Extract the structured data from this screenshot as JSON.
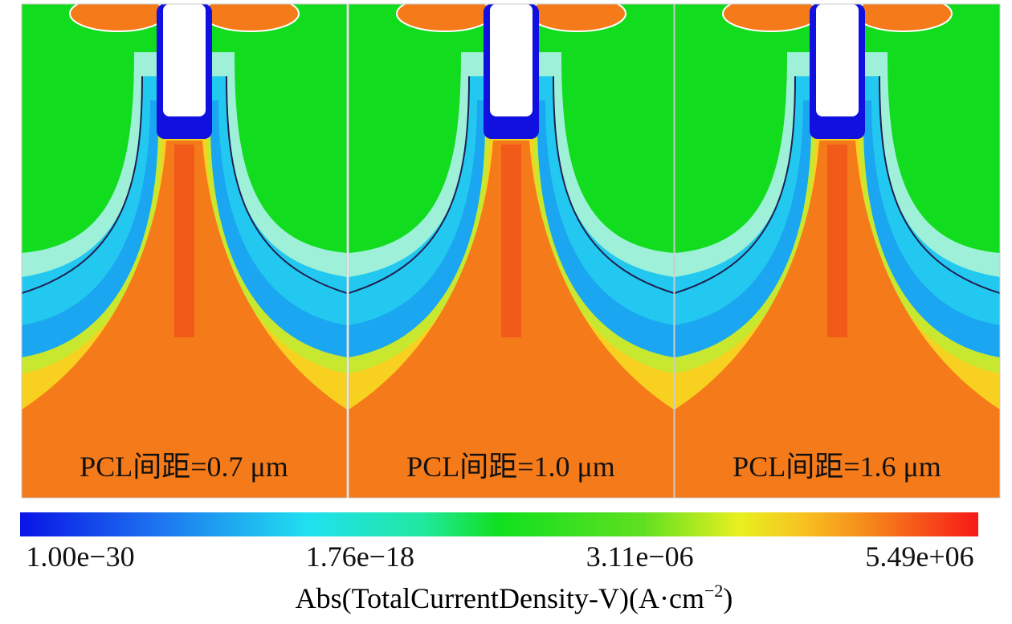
{
  "panels": [
    {
      "label": "PCL间距=0.7 μm"
    },
    {
      "label": "PCL间距=1.0 μm"
    },
    {
      "label": "PCL间距=1.6 μm"
    }
  ],
  "colorbar": {
    "ticks": [
      "1.00e−30",
      "1.76e−18",
      "3.11e−06",
      "5.49e+06"
    ],
    "title": {
      "main": "Abs(TotalCurrentDensity-V)(A·cm",
      "sup": "−2",
      "end": ")"
    }
  }
}
